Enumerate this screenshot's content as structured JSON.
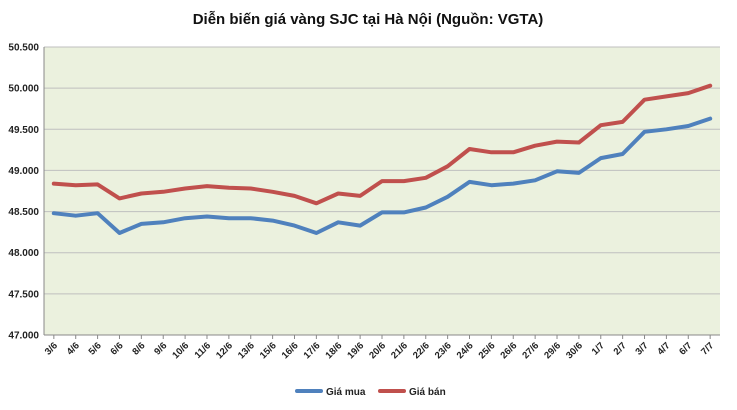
{
  "chart_data": {
    "type": "line",
    "title": "Diễn biến giá vàng SJC tại Hà Nội (Nguồn: VGTA)",
    "xlabel": "",
    "ylabel": "",
    "ylim": [
      47000,
      50500
    ],
    "ytick_values": [
      47000,
      47500,
      48000,
      48500,
      49000,
      49500,
      50000,
      50500
    ],
    "ytick_labels": [
      "47.000",
      "47.500",
      "48.000",
      "48.500",
      "49.000",
      "49.500",
      "50.000",
      "50.500"
    ],
    "categories": [
      "3/6",
      "4/6",
      "5/6",
      "6/6",
      "8/6",
      "9/6",
      "10/6",
      "11/6",
      "12/6",
      "13/6",
      "15/6",
      "16/6",
      "17/6",
      "18/6",
      "19/6",
      "20/6",
      "21/6",
      "22/6",
      "23/6",
      "24/6",
      "25/6",
      "26/6",
      "27/6",
      "29/6",
      "30/6",
      "1/7",
      "2/7",
      "3/7",
      "4/7",
      "6/7",
      "7/7"
    ],
    "series": [
      {
        "name": "Giá mua",
        "color": "#4f81bd",
        "values": [
          48480,
          48450,
          48480,
          48240,
          48350,
          48370,
          48420,
          48440,
          48420,
          48420,
          48390,
          48330,
          48240,
          48370,
          48330,
          48490,
          48490,
          48550,
          48680,
          48860,
          48820,
          48840,
          48880,
          48990,
          48970,
          49150,
          49200,
          49470,
          49500,
          49540,
          49630
        ]
      },
      {
        "name": "Giá bán",
        "color": "#c0504d",
        "values": [
          48840,
          48820,
          48830,
          48660,
          48720,
          48740,
          48780,
          48810,
          48790,
          48780,
          48740,
          48690,
          48600,
          48720,
          48690,
          48870,
          48870,
          48910,
          49050,
          49260,
          49220,
          49220,
          49300,
          49350,
          49340,
          49550,
          49590,
          49860,
          49900,
          49940,
          50030
        ]
      }
    ],
    "legend_position": "bottom-center",
    "grid": true,
    "plot_background": "#ebf1de"
  }
}
